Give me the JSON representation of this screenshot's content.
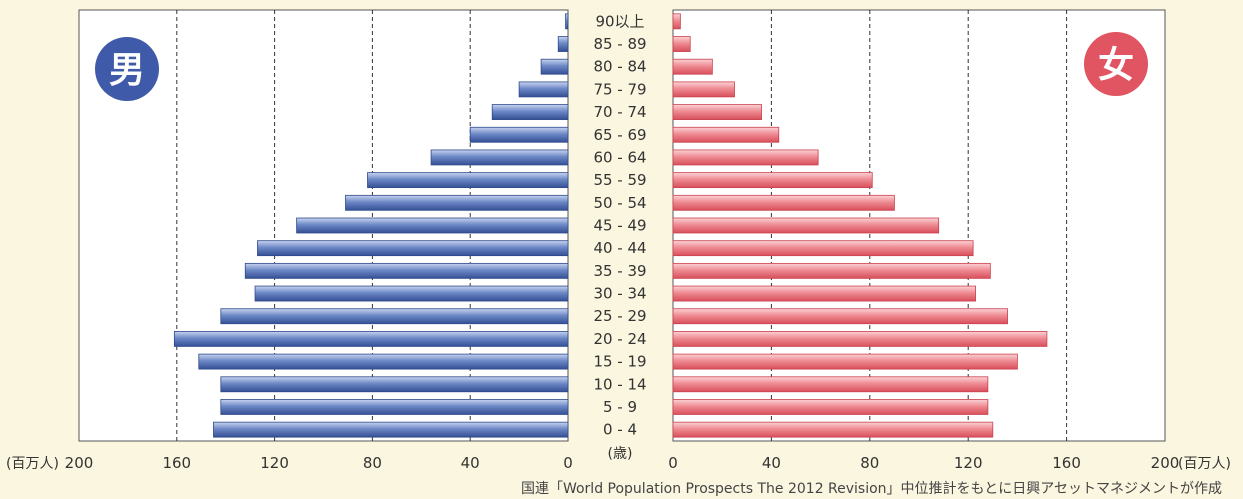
{
  "chart_data": {
    "type": "bar",
    "orientation": "horizontal",
    "layout": "population-pyramid",
    "categories": [
      "0 - 4",
      "5 - 9",
      "10 - 14",
      "15 - 19",
      "20 - 24",
      "25 - 29",
      "30 - 34",
      "35 - 39",
      "40 - 44",
      "45 - 49",
      "50 - 54",
      "55 - 59",
      "60 - 64",
      "65 - 69",
      "70 - 74",
      "75 - 79",
      "80 - 84",
      "85 - 89",
      "90以上"
    ],
    "series": [
      {
        "name": "男",
        "color": "#3f5fa8",
        "values": [
          145,
          142,
          142,
          151,
          161,
          142,
          128,
          132,
          127,
          111,
          91,
          82,
          56,
          40,
          31,
          20,
          11,
          4,
          1
        ]
      },
      {
        "name": "女",
        "color": "#e8606b",
        "values": [
          130,
          128,
          128,
          140,
          152,
          136,
          123,
          129,
          122,
          108,
          90,
          81,
          59,
          43,
          36,
          25,
          16,
          7,
          3
        ]
      }
    ],
    "xlim": [
      0,
      200
    ],
    "ticks": [
      "200",
      "160",
      "120",
      "80",
      "40",
      "0",
      "0",
      "40",
      "80",
      "120",
      "160",
      "200"
    ],
    "unit_left": "(百万人)",
    "unit_right": "(百万人)",
    "age_unit": "(歳)",
    "grid": "dashed vertical at 40-unit intervals",
    "source": "国連「World Population Prospects  The 2012 Revision」中位推計をもとに日興アセットマネジメントが作成"
  },
  "male_badge": "男",
  "female_badge": "女"
}
